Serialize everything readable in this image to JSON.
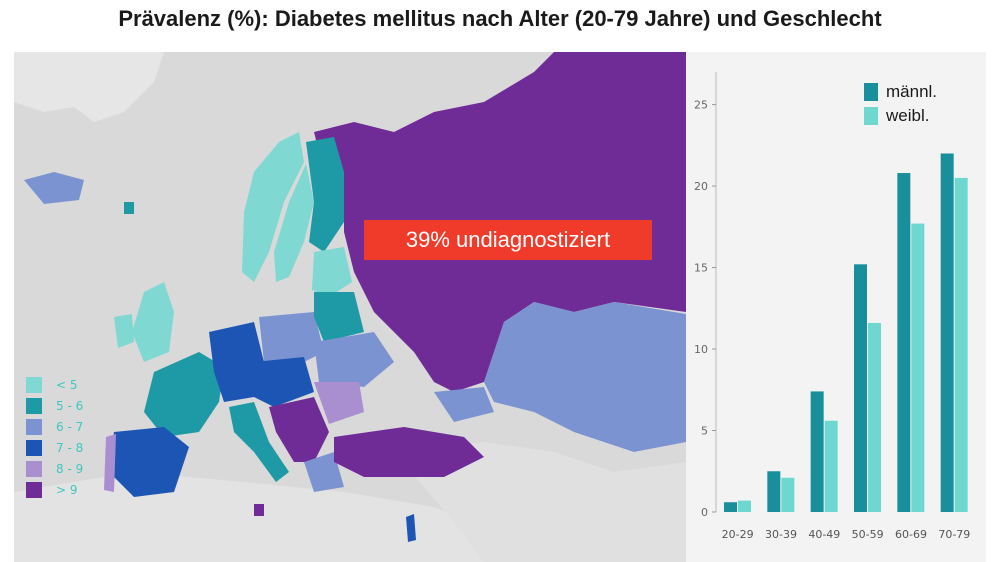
{
  "title": "Prävalenz (%): Diabetes mellitus nach Alter (20-79 Jahre) und Geschlecht",
  "map": {
    "banner_text": "39% undiagnostiziert",
    "banner_color": "#f03a2a",
    "legend": [
      {
        "label": "< 5",
        "color": "#7fd9d2"
      },
      {
        "label": "5 - 6",
        "color": "#1e9aa6"
      },
      {
        "label": "6 - 7",
        "color": "#7b93d0"
      },
      {
        "label": "7 - 8",
        "color": "#1d55b5"
      },
      {
        "label": "8 - 9",
        "color": "#a98fd0"
      },
      {
        "label": "> 9",
        "color": "#6f2b96"
      }
    ]
  },
  "chart_data": {
    "type": "bar",
    "categories": [
      "20-29",
      "30-39",
      "40-49",
      "50-59",
      "60-69",
      "70-79"
    ],
    "series": [
      {
        "name": "männl.",
        "color": "#1a8f9c",
        "values": [
          0.6,
          2.5,
          7.4,
          15.2,
          20.8,
          22.0
        ]
      },
      {
        "name": "weibl.",
        "color": "#6ed8d0",
        "values": [
          0.7,
          2.1,
          5.6,
          11.6,
          17.7,
          20.5
        ]
      }
    ],
    "yticks": [
      0,
      5,
      10,
      15,
      20,
      25
    ],
    "ylim": [
      0,
      27
    ],
    "grid": false,
    "legend_position": "top-right"
  }
}
